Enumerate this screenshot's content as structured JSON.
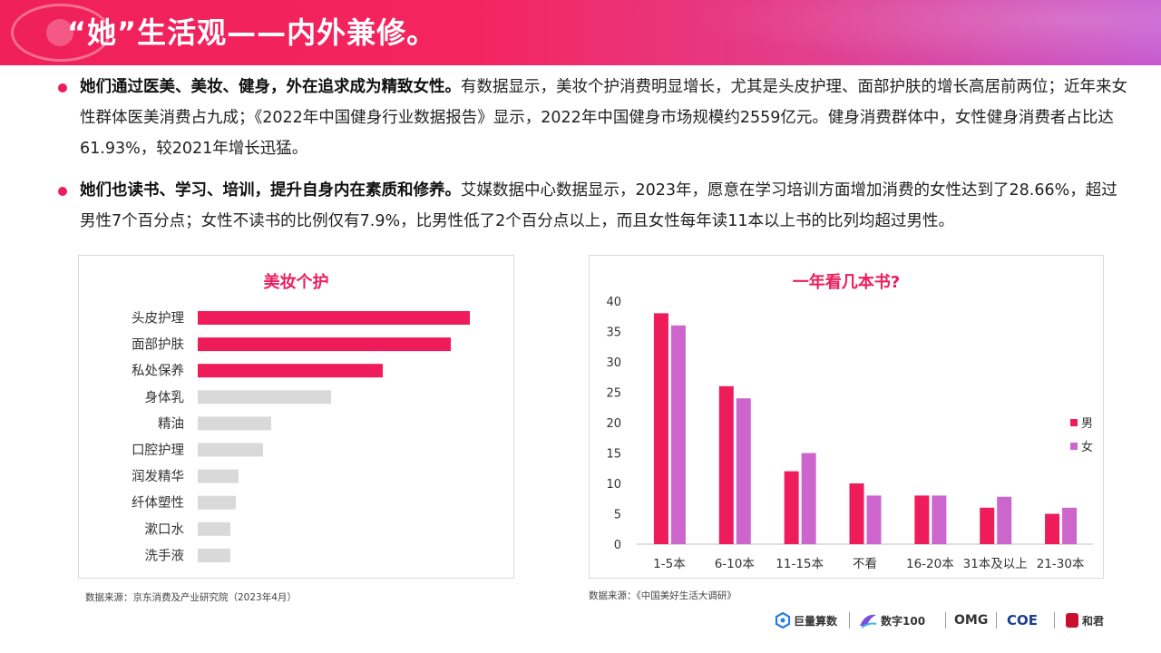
{
  "header": {
    "title": "“她”生活观——内外兼修。"
  },
  "bullets": [
    {
      "bold": "她们通过医美、美妆、健身，外在追求成为精致女性。",
      "text": "有数据显示，美妆个护消费明显增长，尤其是头皮护理、面部护肤的增长高居前两位；近年来女性群体医美消费占九成；《2022年中国健身行业数据报告》显示，2022年中国健身市场规模约2559亿元。健身消费群体中，女性健身消费者占比达61.93%，较2021年增长迅猛。"
    },
    {
      "bold": "她们也读书、学习、培训，提升自身内在素质和修养。",
      "text": "艾媒数据中心数据显示，2023年，愿意在学习培训方面增加消费的女性达到了28.66%，超过男性7个百分点；女性不读书的比例仅有7.9%，比男性低了2个百分点以上，而且女性每年读11本以上书的比列均超过男性。"
    }
  ],
  "left_source": "数据来源：京东消费及产业研究院（2023年4月）",
  "right_source": "数据来源：《中国美好生活大调研》",
  "colors": {
    "accent": "#ee1c5b",
    "female": "#cc66cc",
    "grey": "#d9d9d9"
  },
  "chart_data": [
    {
      "type": "bar",
      "orientation": "horizontal",
      "title": "美妆个护",
      "categories": [
        "头皮护理",
        "面部护肤",
        "私处保养",
        "身体乳",
        "精油",
        "口腔护理",
        "润发精华",
        "纤体塑性",
        "漱口水",
        "洗手液"
      ],
      "values": [
        100,
        93,
        68,
        49,
        27,
        24,
        15,
        14,
        12,
        12
      ],
      "highlighted": [
        "头皮护理",
        "面部护肤",
        "私处保养"
      ],
      "highlight_color": "#ee1c5b",
      "base_color": "#d9d9d9",
      "axis_visible": false
    },
    {
      "type": "bar",
      "title": "一年看几本书?",
      "categories": [
        "1-5本",
        "6-10本",
        "11-15本",
        "不看",
        "16-20本",
        "31本及以上",
        "21-30本"
      ],
      "series": [
        {
          "name": "男",
          "color": "#ee1c5b",
          "values": [
            38,
            26,
            12,
            10,
            8,
            6,
            5
          ]
        },
        {
          "name": "女",
          "color": "#cc66cc",
          "values": [
            36,
            24,
            15,
            8,
            8,
            7.8,
            6
          ]
        }
      ],
      "ylim": [
        0,
        40
      ],
      "yticks": [
        0,
        5,
        10,
        15,
        20,
        25,
        30,
        35,
        40
      ],
      "legend": "right",
      "grid": false
    }
  ],
  "footer_logos": [
    "巨量算数",
    "数字100",
    "OMG",
    "COE",
    "和君"
  ]
}
